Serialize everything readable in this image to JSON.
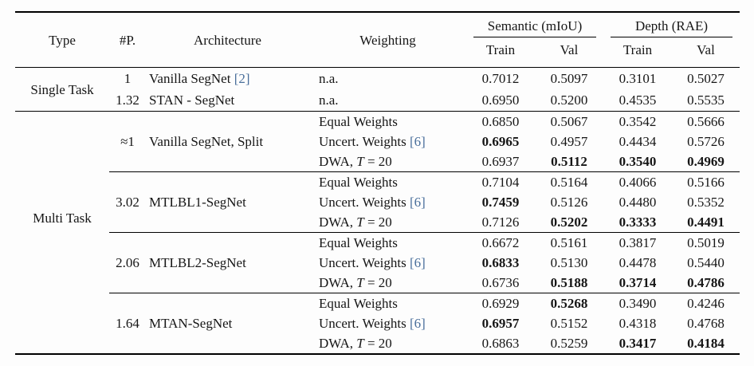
{
  "colors": {
    "citation": "#4a6f9b",
    "text": "#161616",
    "rule": "#000000"
  },
  "table": {
    "header": {
      "type": "Type",
      "params": "#P.",
      "architecture": "Architecture",
      "weighting": "Weighting",
      "semantic_group": "Semantic (mIoU)",
      "depth_group": "Depth (RAE)",
      "train": "Train",
      "val": "Val"
    },
    "single": {
      "label": "Single Task",
      "rows": [
        {
          "pp": "1",
          "arch": "Vanilla SegNet",
          "cite": "[2]",
          "w": "n.a.",
          "v": [
            "0.7012",
            "0.5097",
            "0.3101",
            "0.5027"
          ]
        },
        {
          "pp": "1.32",
          "arch": "STAN - SegNet",
          "w": "n.a.",
          "v": [
            "0.6950",
            "0.5200",
            "0.4535",
            "0.5535"
          ]
        }
      ]
    },
    "multi": {
      "label": "Multi Task",
      "wlabels": {
        "equal": "Equal Weights",
        "uncert": "Uncert. Weights",
        "cite": "[6]",
        "dwa": "DWA,",
        "dwa_t": "T",
        "dwa_eq": "= 20"
      },
      "blocks": [
        {
          "pp": "≈1",
          "arch": "Vanilla SegNet, Split",
          "rows": [
            {
              "v": [
                "0.6850",
                "0.5067",
                "0.3542",
                "0.5666"
              ]
            },
            {
              "v": [
                "0.6965",
                "0.4957",
                "0.4434",
                "0.5726"
              ]
            },
            {
              "v": [
                "0.6937",
                "0.5112",
                "0.3540",
                "0.4969"
              ]
            }
          ]
        },
        {
          "pp": "3.02",
          "arch": "MTLBL1-SegNet",
          "rows": [
            {
              "v": [
                "0.7104",
                "0.5164",
                "0.4066",
                "0.5166"
              ]
            },
            {
              "v": [
                "0.7459",
                "0.5126",
                "0.4480",
                "0.5352"
              ]
            },
            {
              "v": [
                "0.7126",
                "0.5202",
                "0.3333",
                "0.4491"
              ]
            }
          ]
        },
        {
          "pp": "2.06",
          "arch": "MTLBL2-SegNet",
          "rows": [
            {
              "v": [
                "0.6672",
                "0.5161",
                "0.3817",
                "0.5019"
              ]
            },
            {
              "v": [
                "0.6833",
                "0.5130",
                "0.4478",
                "0.5440"
              ]
            },
            {
              "v": [
                "0.6736",
                "0.5188",
                "0.3714",
                "0.4786"
              ]
            }
          ]
        },
        {
          "pp": "1.64",
          "arch": "MTAN-SegNet",
          "rows": [
            {
              "v": [
                "0.6929",
                "0.5268",
                "0.3490",
                "0.4246"
              ]
            },
            {
              "v": [
                "0.6957",
                "0.5152",
                "0.4318",
                "0.4768"
              ]
            },
            {
              "v": [
                "0.6863",
                "0.5259",
                "0.3417",
                "0.4184"
              ]
            }
          ]
        }
      ]
    }
  }
}
